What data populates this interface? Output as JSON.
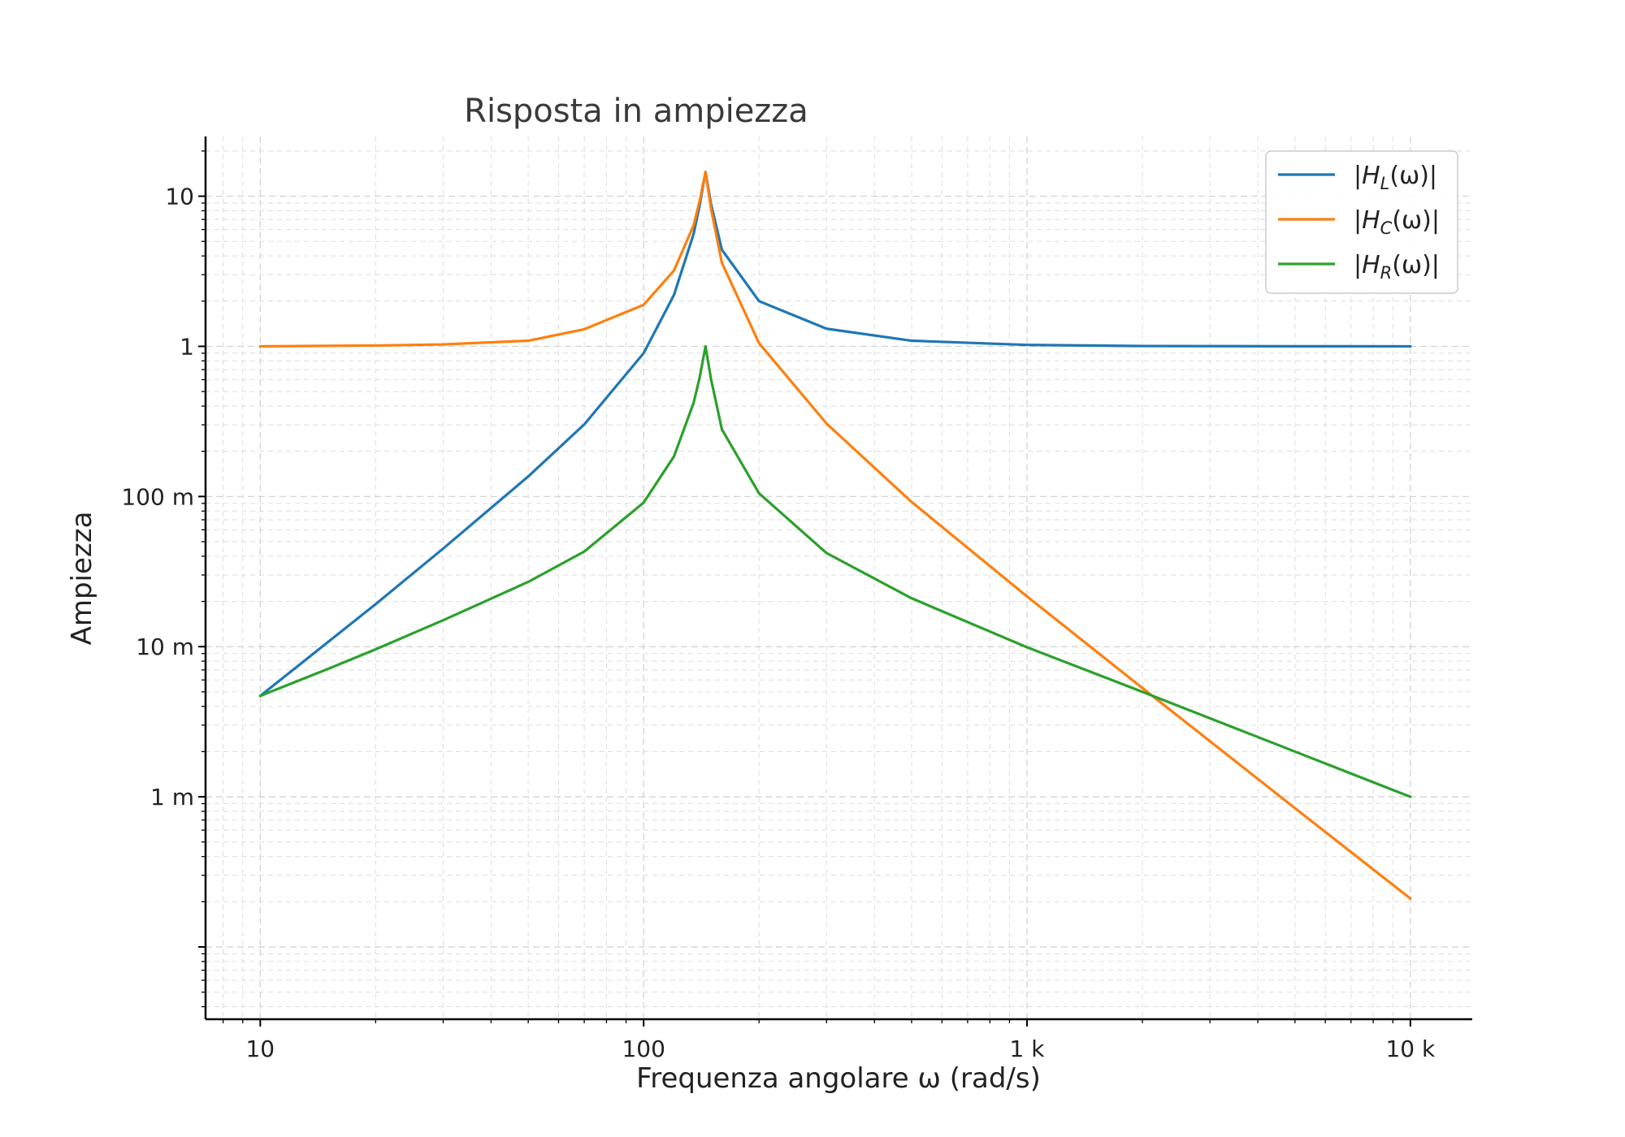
{
  "chart_data": {
    "type": "line",
    "title": "Risposta in ampiezza",
    "xlabel": "Frequenza angolare ω (rad/s)",
    "ylabel": "Ampiezza",
    "x_scale": "log",
    "y_scale": "log",
    "xlim": [
      7.2,
      14500
    ],
    "ylim": [
      3.3e-05,
      25
    ],
    "x_ticks": [
      {
        "value": 10,
        "label": "10"
      },
      {
        "value": 100,
        "label": "100"
      },
      {
        "value": 1000,
        "label": "1 k"
      },
      {
        "value": 10000,
        "label": "10 k"
      }
    ],
    "y_ticks": [
      {
        "value": 10,
        "label": "10"
      },
      {
        "value": 1,
        "label": "1"
      },
      {
        "value": 0.1,
        "label": "100 m"
      },
      {
        "value": 0.01,
        "label": "10 m"
      },
      {
        "value": 0.001,
        "label": "1 m"
      }
    ],
    "grid": true,
    "legend_position": "top-right",
    "series": [
      {
        "name": "|H_L(ω)|",
        "legend": {
          "base": "|H",
          "sub": "L",
          "rest": "(ω)|"
        },
        "color": "#1f77b4",
        "x": [
          10,
          15,
          20,
          30,
          50,
          70,
          100,
          120,
          135,
          140,
          145,
          150,
          160,
          200,
          300,
          500,
          1000,
          2000,
          5000,
          10000
        ],
        "y": [
          0.0047,
          0.0107,
          0.0192,
          0.045,
          0.136,
          0.302,
          0.9,
          2.2,
          5.6,
          8.7,
          14.5,
          8.8,
          4.4,
          2.0,
          1.31,
          1.09,
          1.022,
          1.005,
          1.001,
          1.0
        ]
      },
      {
        "name": "|H_C(ω)|",
        "legend": {
          "base": "|H",
          "sub": "C",
          "rest": "(ω)|"
        },
        "color": "#ff7f0e",
        "x": [
          10,
          15,
          20,
          30,
          50,
          70,
          100,
          120,
          135,
          140,
          145,
          150,
          160,
          200,
          300,
          500,
          1000,
          2000,
          5000,
          10000
        ],
        "y": [
          1.0,
          1.008,
          1.013,
          1.03,
          1.09,
          1.3,
          1.89,
          3.2,
          6.4,
          9.3,
          14.5,
          8.2,
          3.6,
          1.05,
          0.306,
          0.092,
          0.0216,
          0.0053,
          0.00084,
          0.00021
        ]
      },
      {
        "name": "|H_R(ω)|",
        "legend": {
          "base": "|H",
          "sub": "R",
          "rest": "(ω)|"
        },
        "color": "#2ca02c",
        "x": [
          10,
          15,
          20,
          30,
          50,
          70,
          100,
          120,
          135,
          140,
          145,
          150,
          160,
          200,
          300,
          500,
          1000,
          2000,
          5000,
          10000
        ],
        "y": [
          0.0047,
          0.0071,
          0.0096,
          0.015,
          0.027,
          0.043,
          0.091,
          0.185,
          0.42,
          0.62,
          1.0,
          0.6,
          0.28,
          0.105,
          0.042,
          0.021,
          0.0099,
          0.005,
          0.002,
          0.001
        ]
      }
    ]
  }
}
